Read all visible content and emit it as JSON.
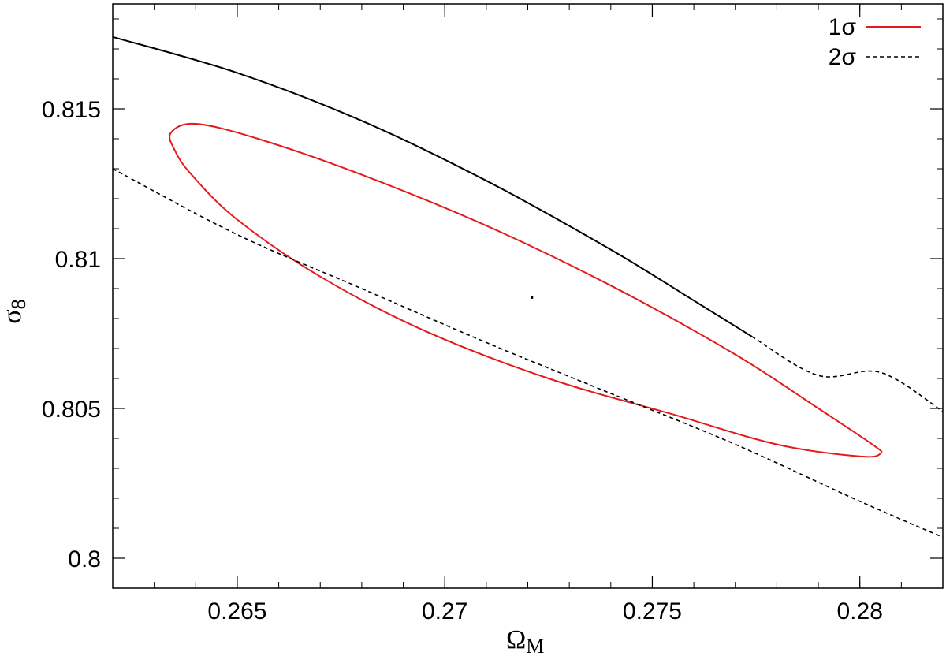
{
  "chart_data": {
    "type": "line",
    "title": "",
    "xlabel": "Ω",
    "xlabel_sub": "M",
    "ylabel": "σ",
    "ylabel_sub": "8",
    "xlim": [
      0.262,
      0.282
    ],
    "ylim": [
      0.799,
      0.8185
    ],
    "x_ticks": [
      {
        "value": 0.265,
        "label": "0.265"
      },
      {
        "value": 0.27,
        "label": "0.27"
      },
      {
        "value": 0.275,
        "label": "0.275"
      },
      {
        "value": 0.28,
        "label": "0.28"
      }
    ],
    "y_ticks": [
      {
        "value": 0.8,
        "label": "0.8"
      },
      {
        "value": 0.805,
        "label": "0.805"
      },
      {
        "value": 0.81,
        "label": "0.81"
      },
      {
        "value": 0.815,
        "label": "0.815"
      }
    ],
    "x_minor_step": 0.001,
    "y_minor_step": 0.001,
    "grid": false,
    "legend_position": "top-right",
    "best_fit": {
      "x": 0.2721,
      "y": 0.8087
    },
    "series": [
      {
        "name": "1σ",
        "style": "solid",
        "color": "#e41a1c",
        "closed": true,
        "points": [
          [
            0.2635,
            0.8136
          ],
          [
            0.2634,
            0.8142
          ],
          [
            0.264,
            0.8145
          ],
          [
            0.2655,
            0.814
          ],
          [
            0.268,
            0.8128
          ],
          [
            0.271,
            0.8111
          ],
          [
            0.274,
            0.8091
          ],
          [
            0.277,
            0.8068
          ],
          [
            0.279,
            0.805
          ],
          [
            0.2803,
            0.8038
          ],
          [
            0.2805,
            0.8035
          ],
          [
            0.28,
            0.8034
          ],
          [
            0.278,
            0.8038
          ],
          [
            0.2755,
            0.8048
          ],
          [
            0.2725,
            0.806
          ],
          [
            0.2695,
            0.8076
          ],
          [
            0.267,
            0.8094
          ],
          [
            0.265,
            0.8113
          ],
          [
            0.2639,
            0.8128
          ],
          [
            0.2635,
            0.8136
          ]
        ]
      },
      {
        "name": "2σ",
        "style": "dashed",
        "color": "#000000",
        "closed": false,
        "segments": [
          [
            [
              0.262,
              0.8174
            ],
            [
              0.265,
              0.8162
            ],
            [
              0.268,
              0.8146
            ],
            [
              0.271,
              0.8126
            ],
            [
              0.274,
              0.8103
            ],
            [
              0.276,
              0.8086
            ],
            [
              0.2774,
              0.8074
            ]
          ],
          [
            [
              0.2774,
              0.8074
            ],
            [
              0.279,
              0.8061
            ],
            [
              0.2805,
              0.8062
            ],
            [
              0.282,
              0.8049
            ]
          ],
          [
            [
              0.262,
              0.813
            ],
            [
              0.265,
              0.8108
            ],
            [
              0.268,
              0.809
            ],
            [
              0.271,
              0.8072
            ],
            [
              0.274,
              0.8055
            ],
            [
              0.277,
              0.8038
            ],
            [
              0.28,
              0.8019
            ],
            [
              0.282,
              0.8007
            ]
          ]
        ],
        "segment_styles": [
          "solid",
          "dashed",
          "dashed"
        ]
      }
    ]
  }
}
